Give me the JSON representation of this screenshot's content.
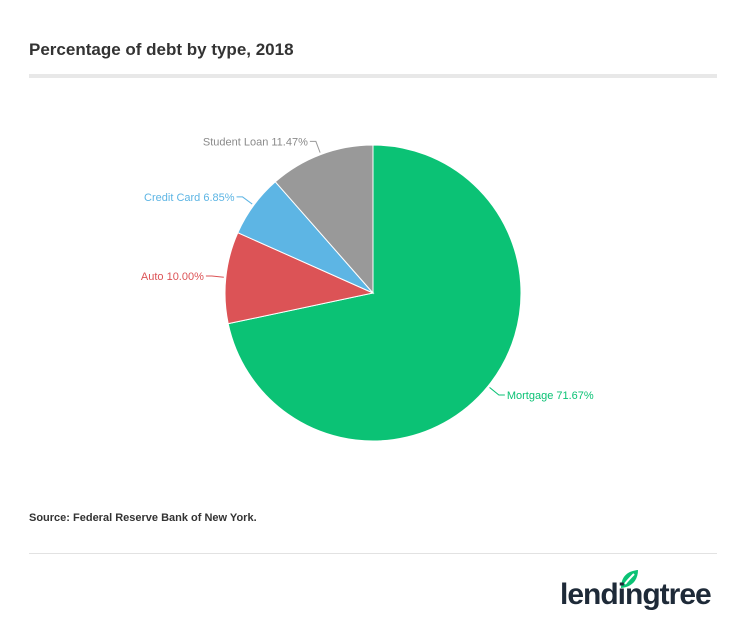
{
  "chart_data": {
    "type": "pie",
    "title": "Percentage of debt by type, 2018",
    "source": "Source: Federal Reserve Bank of New York.",
    "slices": [
      {
        "label": "Mortgage",
        "value": 71.67,
        "display": "Mortgage 71.67%",
        "color": "#0bc275"
      },
      {
        "label": "Auto",
        "value": 10.0,
        "display": "Auto 10.00%",
        "color": "#dc5356"
      },
      {
        "label": "Credit Card",
        "value": 6.85,
        "display": "Credit Card 6.85%",
        "color": "#5db5e4"
      },
      {
        "label": "Student Loan",
        "value": 11.47,
        "display": "Student Loan 11.47%",
        "color": "#999999"
      }
    ],
    "start": "top",
    "direction": "clockwise"
  },
  "brand": {
    "logo_text": "lendingtree",
    "logo_color": "#1e2a38",
    "leaf_color": "#0bc275"
  }
}
